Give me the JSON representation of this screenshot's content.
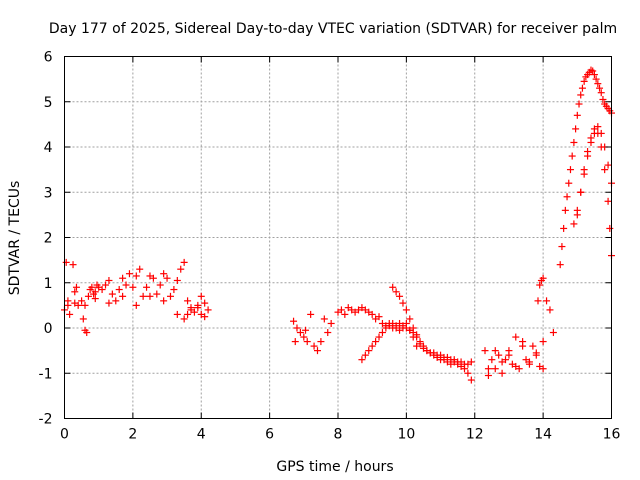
{
  "chart_data": {
    "type": "scatter",
    "title": "Day 177 of 2025, Sidereal Day-to-day VTEC variation (SDTVAR) for receiver palm",
    "xlabel": "GPS time / hours",
    "ylabel": "SDTVAR / TECUs",
    "xlim": [
      0,
      16
    ],
    "ylim": [
      -2,
      6
    ],
    "xticks": [
      "0",
      "2",
      "4",
      "6",
      "8",
      "10",
      "12",
      "14",
      "16"
    ],
    "yticks": [
      "-2",
      "-1",
      "0",
      "1",
      "2",
      "3",
      "4",
      "5",
      "6"
    ],
    "grid": true,
    "marker": "+",
    "color": "#ff0000",
    "series": [
      {
        "name": "SDTVAR",
        "x": [
          0.0,
          0.05,
          0.1,
          0.15,
          0.25,
          0.3,
          0.35,
          0.4,
          0.5,
          0.55,
          0.6,
          0.65,
          0.7,
          0.75,
          0.8,
          0.85,
          0.9,
          0.95,
          1.0,
          1.1,
          1.2,
          1.3,
          1.4,
          1.5,
          1.6,
          1.7,
          1.8,
          1.9,
          2.0,
          2.1,
          2.2,
          2.3,
          2.4,
          2.5,
          2.6,
          2.7,
          2.8,
          2.9,
          3.0,
          3.1,
          3.2,
          3.3,
          3.4,
          3.5,
          3.6,
          3.7,
          3.8,
          3.9,
          4.0,
          4.1,
          4.2,
          0.1,
          0.3,
          0.6,
          0.9,
          1.3,
          1.7,
          2.1,
          2.5,
          2.9,
          3.3,
          3.5,
          3.6,
          3.7,
          3.9,
          4.0,
          4.1,
          6.7,
          6.75,
          6.8,
          6.9,
          7.0,
          7.05,
          7.1,
          7.2,
          7.3,
          7.4,
          7.5,
          7.6,
          7.7,
          7.8,
          8.0,
          8.1,
          8.2,
          8.3,
          8.4,
          8.5,
          8.6,
          8.7,
          8.8,
          8.9,
          9.0,
          9.1,
          9.2,
          9.3,
          9.4,
          9.5,
          9.6,
          9.7,
          9.8,
          9.9,
          10.0,
          10.1,
          10.2,
          10.3,
          10.4,
          10.5,
          10.6,
          10.7,
          10.8,
          10.9,
          11.0,
          11.1,
          11.2,
          11.3,
          11.4,
          11.5,
          11.6,
          11.7,
          11.8,
          11.9,
          8.7,
          8.8,
          8.9,
          9.0,
          9.1,
          9.2,
          9.3,
          9.4,
          9.5,
          9.6,
          9.7,
          9.8,
          9.9,
          10.0,
          10.1,
          10.2,
          10.3,
          9.6,
          9.7,
          9.8,
          9.9,
          10.0,
          10.1,
          10.2,
          10.3,
          10.4,
          10.5,
          10.6,
          10.7,
          10.8,
          10.9,
          11.0,
          11.1,
          11.2,
          11.3,
          11.4,
          11.5,
          11.6,
          11.7,
          11.8,
          11.9,
          12.3,
          12.4,
          12.5,
          12.6,
          12.7,
          12.8,
          12.9,
          13.0,
          13.1,
          13.2,
          13.3,
          13.4,
          13.5,
          13.6,
          13.7,
          13.8,
          13.9,
          14.0,
          12.4,
          12.6,
          12.8,
          13.0,
          13.2,
          13.4,
          13.6,
          13.8,
          14.0,
          13.85,
          13.9,
          13.95,
          14.0,
          14.1,
          14.2,
          14.3,
          14.5,
          14.55,
          14.6,
          14.65,
          14.7,
          14.75,
          14.8,
          14.85,
          14.9,
          14.95,
          15.0,
          15.05,
          15.1,
          15.15,
          15.2,
          15.25,
          15.3,
          15.35,
          15.4,
          15.45,
          15.5,
          15.55,
          15.6,
          15.65,
          15.7,
          15.75,
          15.8,
          15.85,
          15.9,
          15.95,
          16.0,
          14.9,
          15.0,
          15.1,
          15.2,
          15.3,
          15.4,
          15.5,
          15.6,
          15.7,
          15.8,
          15.9,
          16.0,
          15.0,
          15.1,
          15.2,
          15.3,
          15.4,
          15.5,
          15.6,
          15.7,
          15.8,
          15.9,
          15.95,
          16.0
        ],
        "y": [
          0.4,
          1.45,
          0.5,
          0.3,
          1.4,
          0.8,
          0.9,
          0.5,
          0.6,
          0.2,
          -0.05,
          -0.1,
          0.7,
          0.85,
          0.9,
          0.75,
          0.8,
          0.95,
          0.9,
          0.85,
          0.95,
          1.05,
          0.75,
          0.6,
          0.85,
          1.1,
          0.95,
          1.2,
          0.9,
          1.15,
          1.3,
          0.7,
          0.9,
          1.15,
          1.1,
          0.75,
          0.95,
          1.2,
          1.1,
          0.7,
          0.85,
          1.05,
          1.3,
          1.45,
          0.6,
          0.45,
          0.35,
          0.5,
          0.7,
          0.55,
          0.4,
          0.6,
          0.55,
          0.5,
          0.65,
          0.55,
          0.7,
          0.5,
          0.7,
          0.6,
          0.3,
          0.2,
          0.3,
          0.4,
          0.45,
          0.3,
          0.25,
          0.15,
          -0.3,
          0.0,
          -0.1,
          -0.2,
          -0.05,
          -0.3,
          0.3,
          -0.4,
          -0.5,
          -0.3,
          0.2,
          -0.1,
          0.1,
          0.35,
          0.4,
          0.3,
          0.45,
          0.4,
          0.35,
          0.4,
          0.45,
          0.4,
          0.35,
          0.3,
          0.2,
          0.25,
          0.1,
          0.05,
          0.1,
          0.0,
          0.05,
          0.1,
          0.0,
          0.0,
          -0.05,
          -0.1,
          -0.2,
          -0.3,
          -0.4,
          -0.5,
          -0.55,
          -0.6,
          -0.65,
          -0.7,
          -0.7,
          -0.75,
          -0.8,
          -0.75,
          -0.8,
          -0.85,
          -0.9,
          -1.0,
          -1.15,
          -0.7,
          -0.6,
          -0.5,
          -0.4,
          -0.3,
          -0.2,
          -0.1,
          0.0,
          0.05,
          0.1,
          0.0,
          -0.05,
          0.05,
          0.1,
          -0.05,
          -0.2,
          -0.4,
          0.9,
          0.8,
          0.7,
          0.55,
          0.4,
          0.2,
          0.0,
          -0.15,
          -0.35,
          -0.45,
          -0.5,
          -0.55,
          -0.55,
          -0.6,
          -0.6,
          -0.65,
          -0.65,
          -0.7,
          -0.7,
          -0.75,
          -0.75,
          -0.8,
          -0.8,
          -0.75,
          -0.5,
          -1.05,
          -0.7,
          -0.9,
          -0.6,
          -1.0,
          -0.7,
          -0.5,
          -0.8,
          -0.2,
          -0.9,
          -0.3,
          -0.7,
          -0.8,
          -0.4,
          -0.6,
          -0.85,
          -0.9,
          -0.9,
          -0.5,
          -0.75,
          -0.6,
          -0.85,
          -0.4,
          -0.75,
          -0.55,
          -0.3,
          0.6,
          0.95,
          1.05,
          1.1,
          0.6,
          0.4,
          -0.1,
          1.4,
          1.8,
          2.2,
          2.6,
          2.9,
          3.2,
          3.5,
          3.8,
          4.1,
          4.4,
          4.7,
          4.95,
          5.15,
          5.3,
          5.45,
          5.55,
          5.6,
          5.65,
          5.7,
          5.68,
          5.6,
          5.5,
          5.4,
          5.3,
          5.2,
          5.05,
          4.95,
          4.9,
          4.85,
          4.8,
          4.75,
          2.3,
          2.6,
          3.0,
          3.4,
          3.8,
          4.1,
          4.3,
          4.45,
          4.3,
          4.0,
          3.6,
          3.2,
          2.5,
          3.0,
          3.5,
          3.9,
          4.2,
          4.4,
          4.3,
          4.0,
          3.5,
          2.8,
          2.2,
          1.6
        ]
      }
    ]
  }
}
